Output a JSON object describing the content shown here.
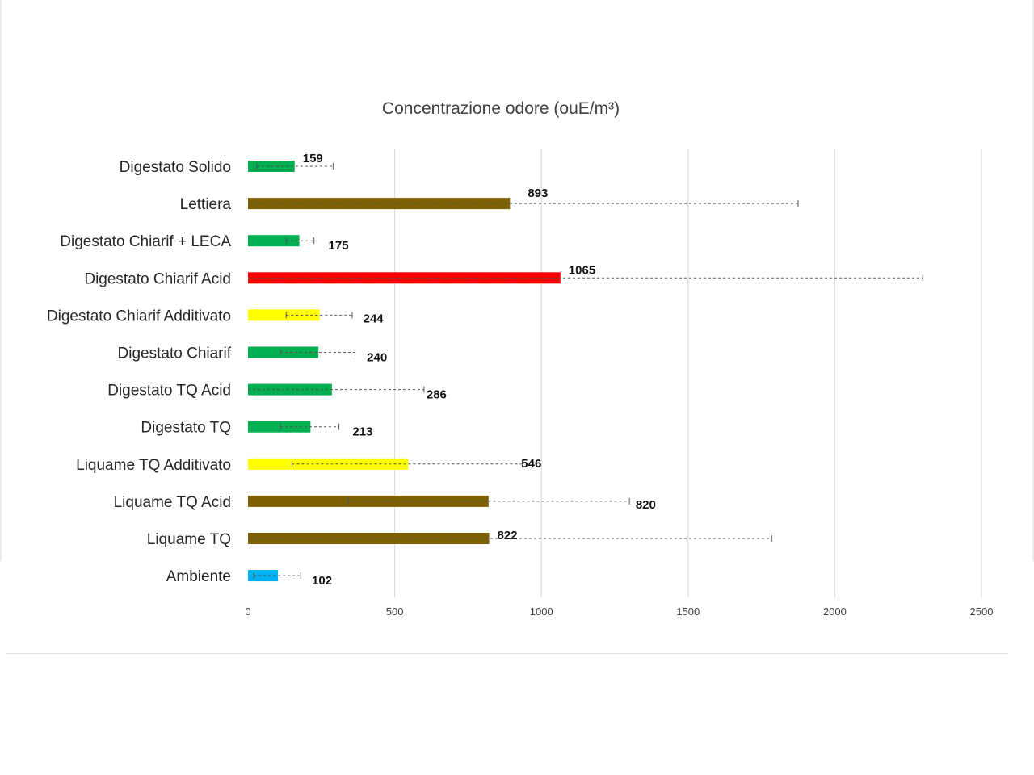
{
  "chart_data": {
    "type": "bar",
    "orientation": "horizontal",
    "title": "Concentrazione  odore (ouE/m³)",
    "xlim": [
      0,
      2500
    ],
    "x_ticks": [
      0,
      500,
      1000,
      1500,
      2000,
      2500
    ],
    "grid": true,
    "legend": "none",
    "categories": [
      "Digestato Solido",
      "Lettiera",
      "Digestato Chiarif + LECA",
      "Digestato Chiarif Acid",
      "Digestato Chiarif Additivato",
      "Digestato Chiarif",
      "Digestato TQ Acid",
      "Digestato TQ",
      "Liquame TQ Additivato",
      "Liquame TQ Acid",
      "Liquame TQ",
      "Ambiente"
    ],
    "values": [
      159,
      893,
      175,
      1065,
      244,
      240,
      286,
      213,
      546,
      820,
      822,
      102
    ],
    "data_labels": [
      "159",
      "893",
      "175",
      "1065",
      "244",
      "240",
      "286",
      "213",
      "546",
      "820",
      "822",
      "102"
    ],
    "error_low": [
      30,
      0,
      130,
      0,
      130,
      110,
      0,
      110,
      150,
      340,
      0,
      20
    ],
    "error_high": [
      290,
      1875,
      225,
      2300,
      355,
      365,
      600,
      310,
      935,
      1300,
      1785,
      180
    ],
    "colors": [
      "#00b050",
      "#7f6000",
      "#00b050",
      "#ff0000",
      "#ffff00",
      "#00b050",
      "#00b050",
      "#00b050",
      "#ffff00",
      "#7f6000",
      "#7f6000",
      "#00b0f0"
    ]
  }
}
